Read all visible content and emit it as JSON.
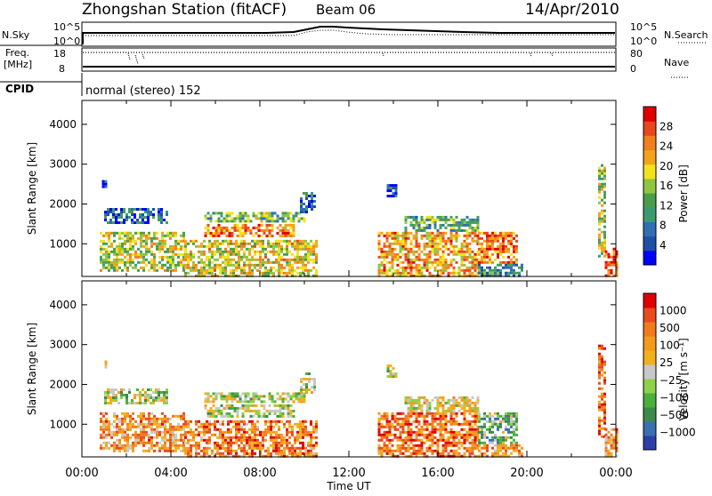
{
  "header": {
    "station": "Zhongshan Station (fitACF)",
    "beam": "Beam 06",
    "date": "14/Apr/2010"
  },
  "status_panels": {
    "nsky_label": "N.Sky",
    "nsky_ticks": [
      "10^5",
      "10^0"
    ],
    "nsearch_label": "N.Search",
    "nsearch_ticks": [
      "10^5",
      "10^0"
    ],
    "freq_label_1": "Freq.",
    "freq_label_2": "[MHz]",
    "freq_ticks": [
      "18",
      "8"
    ],
    "nave_label": "Nave",
    "nave_ticks": [
      "80",
      "0"
    ],
    "cpid_label": "CPID",
    "cpid_value": "normal (stereo) 152"
  },
  "chart_data": [
    {
      "type": "heatmap",
      "name": "Power",
      "ylabel": "Slant Range [km]",
      "ylim": [
        180,
        4600
      ],
      "yticks": [
        1000,
        2000,
        3000,
        4000
      ],
      "xlim": [
        0,
        24
      ],
      "colorbar": {
        "label": "Power [dB]",
        "ticks": [
          "28",
          "24",
          "20",
          "16",
          "12",
          "8",
          "4"
        ],
        "colors": [
          "#0000ff",
          "#1d4ea8",
          "#2f6fb2",
          "#3c9a72",
          "#4a9d4a",
          "#8ec63f",
          "#f3e21c",
          "#f4a21a",
          "#f07f1d",
          "#e8461e",
          "#e00000"
        ]
      },
      "patches": [
        {
          "t0": 0.8,
          "t1": 4.6,
          "r0": 300,
          "r1": 1300,
          "v": 0.55
        },
        {
          "t0": 1.0,
          "t1": 3.8,
          "r0": 1500,
          "r1": 1900,
          "v": 0.2
        },
        {
          "t0": 0.9,
          "t1": 1.1,
          "r0": 2450,
          "r1": 2600,
          "v": 0.1
        },
        {
          "t0": 4.6,
          "t1": 10.5,
          "r0": 200,
          "r1": 1100,
          "v": 0.6
        },
        {
          "t0": 5.5,
          "t1": 9.5,
          "r0": 1200,
          "r1": 1500,
          "v": 0.75
        },
        {
          "t0": 5.5,
          "t1": 10.0,
          "r0": 1550,
          "r1": 1800,
          "v": 0.45
        },
        {
          "t0": 9.8,
          "t1": 10.5,
          "r0": 1800,
          "r1": 2300,
          "v": 0.2
        },
        {
          "t0": 13.3,
          "t1": 17.8,
          "r0": 200,
          "r1": 1300,
          "v": 0.7
        },
        {
          "t0": 14.5,
          "t1": 17.8,
          "r0": 1300,
          "r1": 1700,
          "v": 0.4
        },
        {
          "t0": 13.7,
          "t1": 14.1,
          "r0": 2200,
          "r1": 2500,
          "v": 0.15
        },
        {
          "t0": 17.8,
          "t1": 19.6,
          "r0": 500,
          "r1": 1300,
          "v": 0.8
        },
        {
          "t0": 17.8,
          "t1": 19.8,
          "r0": 200,
          "r1": 500,
          "v": 0.3
        },
        {
          "t0": 23.2,
          "t1": 23.5,
          "r0": 700,
          "r1": 3000,
          "v": 0.5
        },
        {
          "t0": 23.5,
          "t1": 24.0,
          "r0": 200,
          "r1": 900,
          "v": 0.9
        }
      ]
    },
    {
      "type": "heatmap",
      "name": "Velocity",
      "ylabel": "Slant Range [km]",
      "ylim": [
        180,
        4600
      ],
      "yticks": [
        1000,
        2000,
        3000,
        4000
      ],
      "xlim": [
        0,
        24
      ],
      "xticks": [
        "00:00",
        "04:00",
        "08:00",
        "12:00",
        "16:00",
        "20:00",
        "00:00"
      ],
      "xlabel": "Time UT",
      "colorbar": {
        "label": "Velocity [m s⁻¹]",
        "ticks": [
          "1000",
          "500",
          "100",
          "25",
          "−25",
          "−100",
          "−500",
          "−1000"
        ],
        "colors": [
          "#2b3fa8",
          "#3a6fb0",
          "#3c8a4a",
          "#4caf3c",
          "#8ed04a",
          "#c8c8c8",
          "#f2b01c",
          "#f39a1a",
          "#f07a1c",
          "#ea4a1c",
          "#e00000"
        ]
      },
      "patches": [
        {
          "t0": 0.8,
          "t1": 4.6,
          "r0": 300,
          "r1": 1300,
          "v": 0.7
        },
        {
          "t0": 1.0,
          "t1": 3.8,
          "r0": 1500,
          "r1": 1900,
          "v": 0.45
        },
        {
          "t0": 0.9,
          "t1": 1.1,
          "r0": 2450,
          "r1": 2600,
          "v": 0.45
        },
        {
          "t0": 4.6,
          "t1": 10.5,
          "r0": 200,
          "r1": 1100,
          "v": 0.75
        },
        {
          "t0": 5.5,
          "t1": 9.5,
          "r0": 1200,
          "r1": 1500,
          "v": 0.45
        },
        {
          "t0": 5.5,
          "t1": 10.0,
          "r0": 1550,
          "r1": 1800,
          "v": 0.45
        },
        {
          "t0": 9.8,
          "t1": 10.5,
          "r0": 1800,
          "r1": 2300,
          "v": 0.45
        },
        {
          "t0": 13.3,
          "t1": 17.8,
          "r0": 200,
          "r1": 1300,
          "v": 0.8
        },
        {
          "t0": 14.5,
          "t1": 17.8,
          "r0": 1300,
          "r1": 1700,
          "v": 0.55
        },
        {
          "t0": 13.7,
          "t1": 14.1,
          "r0": 2200,
          "r1": 2500,
          "v": 0.45
        },
        {
          "t0": 17.8,
          "t1": 19.6,
          "r0": 500,
          "r1": 1300,
          "v": 0.35
        },
        {
          "t0": 17.8,
          "t1": 19.8,
          "r0": 200,
          "r1": 500,
          "v": 0.7
        },
        {
          "t0": 23.2,
          "t1": 23.5,
          "r0": 700,
          "r1": 3000,
          "v": 0.85
        },
        {
          "t0": 23.5,
          "t1": 24.0,
          "r0": 200,
          "r1": 900,
          "v": 0.7
        }
      ]
    }
  ]
}
